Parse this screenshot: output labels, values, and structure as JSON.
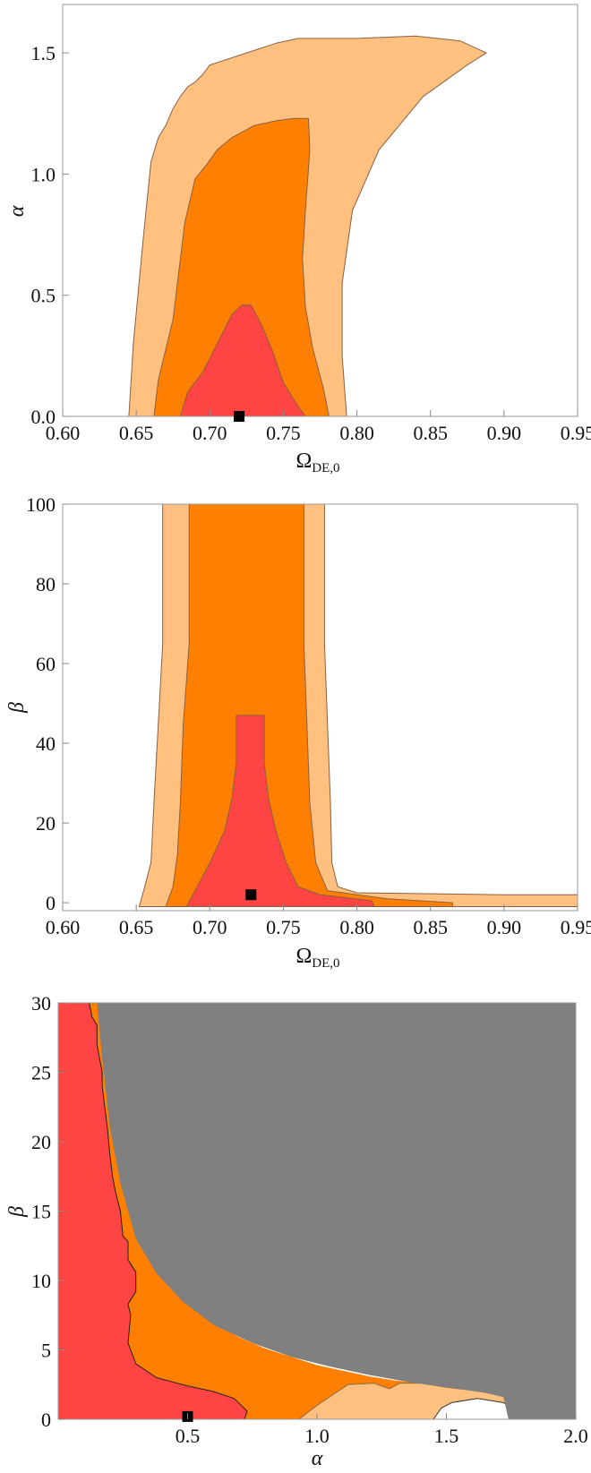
{
  "colors": {
    "inner": "#ff4444",
    "middle": "#ff8000",
    "outer": "#ffc080",
    "excluded": "#808080",
    "best_fit": "#000000",
    "frame": "#9a9a9a"
  },
  "chart_data": [
    {
      "type": "contour",
      "xlabel_main": "Ω",
      "xlabel_sub": "DE,0",
      "ylabel": "α",
      "xlim": [
        0.6,
        0.95
      ],
      "ylim": [
        0.0,
        1.7
      ],
      "x_ticks": [
        "0.60",
        "0.65",
        "0.70",
        "0.75",
        "0.80",
        "0.85",
        "0.90",
        "0.95"
      ],
      "y_ticks": [
        "0.0",
        "0.5",
        "1.0",
        "1.5"
      ],
      "best_fit": {
        "x": 0.72,
        "y": 0.0
      },
      "regions": [
        {
          "name": "outer",
          "points": [
            [
              0.645,
              0.0
            ],
            [
              0.648,
              0.3
            ],
            [
              0.655,
              0.75
            ],
            [
              0.66,
              1.05
            ],
            [
              0.665,
              1.15
            ],
            [
              0.67,
              1.2
            ],
            [
              0.675,
              1.27
            ],
            [
              0.68,
              1.32
            ],
            [
              0.685,
              1.36
            ],
            [
              0.69,
              1.38
            ],
            [
              0.695,
              1.41
            ],
            [
              0.7,
              1.45
            ],
            [
              0.71,
              1.47
            ],
            [
              0.725,
              1.5
            ],
            [
              0.745,
              1.54
            ],
            [
              0.76,
              1.56
            ],
            [
              0.8,
              1.56
            ],
            [
              0.84,
              1.57
            ],
            [
              0.87,
              1.55
            ],
            [
              0.888,
              1.5
            ],
            [
              0.875,
              1.45
            ],
            [
              0.845,
              1.32
            ],
            [
              0.815,
              1.1
            ],
            [
              0.797,
              0.85
            ],
            [
              0.79,
              0.55
            ],
            [
              0.79,
              0.25
            ],
            [
              0.793,
              0.0
            ]
          ]
        },
        {
          "name": "middle",
          "points": [
            [
              0.662,
              0.0
            ],
            [
              0.665,
              0.15
            ],
            [
              0.675,
              0.4
            ],
            [
              0.683,
              0.8
            ],
            [
              0.69,
              0.98
            ],
            [
              0.698,
              1.04
            ],
            [
              0.705,
              1.1
            ],
            [
              0.715,
              1.15
            ],
            [
              0.73,
              1.2
            ],
            [
              0.745,
              1.22
            ],
            [
              0.757,
              1.23
            ],
            [
              0.767,
              1.23
            ],
            [
              0.768,
              1.1
            ],
            [
              0.765,
              0.85
            ],
            [
              0.763,
              0.65
            ],
            [
              0.765,
              0.45
            ],
            [
              0.77,
              0.28
            ],
            [
              0.777,
              0.12
            ],
            [
              0.781,
              0.0
            ]
          ]
        },
        {
          "name": "inner",
          "points": [
            [
              0.68,
              0.0
            ],
            [
              0.685,
              0.1
            ],
            [
              0.695,
              0.18
            ],
            [
              0.705,
              0.3
            ],
            [
              0.715,
              0.42
            ],
            [
              0.722,
              0.46
            ],
            [
              0.728,
              0.46
            ],
            [
              0.735,
              0.38
            ],
            [
              0.742,
              0.28
            ],
            [
              0.75,
              0.14
            ],
            [
              0.758,
              0.06
            ],
            [
              0.765,
              0.0
            ]
          ]
        }
      ]
    },
    {
      "type": "contour",
      "xlabel_main": "Ω",
      "xlabel_sub": "DE,0",
      "ylabel": "β",
      "xlim": [
        0.6,
        0.95
      ],
      "ylim": [
        -2,
        100
      ],
      "x_ticks": [
        "0.60",
        "0.65",
        "0.70",
        "0.75",
        "0.80",
        "0.85",
        "0.90",
        "0.95"
      ],
      "y_ticks": [
        "0",
        "20",
        "40",
        "60",
        "80",
        "100"
      ],
      "best_fit": {
        "x": 0.728,
        "y": 2.0
      },
      "regions": [
        {
          "name": "outer",
          "points": [
            [
              0.652,
              -1
            ],
            [
              0.655,
              3
            ],
            [
              0.66,
              10
            ],
            [
              0.662,
              25
            ],
            [
              0.665,
              45
            ],
            [
              0.668,
              65
            ],
            [
              0.668,
              100
            ],
            [
              0.778,
              100
            ],
            [
              0.778,
              65
            ],
            [
              0.78,
              45
            ],
            [
              0.782,
              25
            ],
            [
              0.783,
              10
            ],
            [
              0.787,
              4
            ],
            [
              0.8,
              2.5
            ],
            [
              0.9,
              2
            ],
            [
              0.95,
              2
            ],
            [
              0.95,
              -1
            ]
          ]
        },
        {
          "name": "middle",
          "points": [
            [
              0.67,
              -1
            ],
            [
              0.675,
              4
            ],
            [
              0.678,
              12
            ],
            [
              0.68,
              25
            ],
            [
              0.682,
              45
            ],
            [
              0.686,
              65
            ],
            [
              0.686,
              100
            ],
            [
              0.764,
              100
            ],
            [
              0.764,
              65
            ],
            [
              0.766,
              45
            ],
            [
              0.768,
              25
            ],
            [
              0.772,
              10
            ],
            [
              0.78,
              3
            ],
            [
              0.82,
              1
            ],
            [
              0.865,
              0
            ],
            [
              0.865,
              -1
            ]
          ]
        },
        {
          "name": "inner",
          "points": [
            [
              0.684,
              -1
            ],
            [
              0.69,
              3
            ],
            [
              0.7,
              10
            ],
            [
              0.71,
              18
            ],
            [
              0.715,
              26
            ],
            [
              0.718,
              35
            ],
            [
              0.718,
              47
            ],
            [
              0.737,
              47
            ],
            [
              0.737,
              35
            ],
            [
              0.74,
              26
            ],
            [
              0.745,
              18
            ],
            [
              0.752,
              10
            ],
            [
              0.76,
              4
            ],
            [
              0.775,
              2
            ],
            [
              0.81,
              0.5
            ],
            [
              0.812,
              -1
            ]
          ]
        }
      ]
    },
    {
      "type": "contour",
      "xlabel_main": "α",
      "xlabel_sub": "",
      "ylabel": "β",
      "xlim": [
        0.0,
        2.0
      ],
      "ylim": [
        0,
        30
      ],
      "x_ticks": [
        "0.5",
        "1.0",
        "1.5",
        "2.0"
      ],
      "y_ticks": [
        "0",
        "5",
        "10",
        "15",
        "20",
        "25",
        "30"
      ],
      "best_fit": {
        "x": 0.5,
        "y": 0.2
      },
      "regions": [
        {
          "name": "orange-base",
          "points": [
            [
              0.0,
              0.0
            ],
            [
              0.0,
              30
            ],
            [
              0.18,
              30
            ],
            [
              0.2,
              25
            ],
            [
              0.24,
              20
            ],
            [
              0.28,
              16
            ],
            [
              0.33,
              13.2
            ],
            [
              0.4,
              10.5
            ],
            [
              0.5,
              8.3
            ],
            [
              0.6,
              6.9
            ],
            [
              0.7,
              5.9
            ],
            [
              0.8,
              5.1
            ],
            [
              0.9,
              4.5
            ],
            [
              1.0,
              3.9
            ],
            [
              1.1,
              3.5
            ],
            [
              1.2,
              3.1
            ],
            [
              1.3,
              2.8
            ],
            [
              1.4,
              2.6
            ],
            [
              1.5,
              2.3
            ],
            [
              1.6,
              2.1
            ],
            [
              1.7,
              2.0
            ],
            [
              1.8,
              1.9
            ],
            [
              1.9,
              1.8
            ],
            [
              2.0,
              1.7
            ],
            [
              2.0,
              0.0
            ]
          ]
        },
        {
          "name": "light",
          "points": [
            [
              0.93,
              0.0
            ],
            [
              1.0,
              1.0
            ],
            [
              1.08,
              2.0
            ],
            [
              1.12,
              2.5
            ],
            [
              1.22,
              2.6
            ],
            [
              1.28,
              2.2
            ],
            [
              1.32,
              2.6
            ],
            [
              1.4,
              2.6
            ],
            [
              1.5,
              2.3
            ],
            [
              1.6,
              2.1
            ],
            [
              1.7,
              2.0
            ],
            [
              1.8,
              1.9
            ],
            [
              1.9,
              1.8
            ],
            [
              2.0,
              1.7
            ],
            [
              2.0,
              0.0
            ]
          ]
        },
        {
          "name": "white-gap",
          "points": [
            [
              1.45,
              0.0
            ],
            [
              1.48,
              0.8
            ],
            [
              1.52,
              1.2
            ],
            [
              1.62,
              1.5
            ],
            [
              1.72,
              1.2
            ],
            [
              1.78,
              0.6
            ],
            [
              1.8,
              0.0
            ]
          ]
        },
        {
          "name": "inner",
          "points": [
            [
              0.0,
              0.0
            ],
            [
              0.0,
              30
            ],
            [
              0.12,
              30
            ],
            [
              0.13,
              29
            ],
            [
              0.15,
              28.4
            ],
            [
              0.15,
              27
            ],
            [
              0.16,
              26
            ],
            [
              0.17,
              25
            ],
            [
              0.17,
              24
            ],
            [
              0.18,
              22.5
            ],
            [
              0.19,
              21
            ],
            [
              0.2,
              19
            ],
            [
              0.21,
              17.5
            ],
            [
              0.22,
              16.5
            ],
            [
              0.24,
              15
            ],
            [
              0.25,
              13.2
            ],
            [
              0.27,
              12.8
            ],
            [
              0.27,
              11.5
            ],
            [
              0.3,
              10.6
            ],
            [
              0.3,
              9.2
            ],
            [
              0.27,
              8.3
            ],
            [
              0.28,
              7.5
            ],
            [
              0.27,
              5.5
            ],
            [
              0.3,
              4.0
            ],
            [
              0.38,
              3.0
            ],
            [
              0.5,
              2.4
            ],
            [
              0.6,
              2.0
            ],
            [
              0.68,
              1.5
            ],
            [
              0.73,
              0.6
            ],
            [
              0.72,
              0.0
            ]
          ]
        }
      ],
      "excluded_region": {
        "name": "grey",
        "points": [
          [
            0.15,
            30
          ],
          [
            0.17,
            26
          ],
          [
            0.2,
            21
          ],
          [
            0.24,
            17
          ],
          [
            0.3,
            13
          ],
          [
            0.38,
            10.5
          ],
          [
            0.48,
            8.5
          ],
          [
            0.6,
            6.8
          ],
          [
            0.75,
            5.5
          ],
          [
            0.9,
            4.5
          ],
          [
            1.05,
            3.8
          ],
          [
            1.2,
            3.2
          ],
          [
            1.35,
            2.7
          ],
          [
            1.5,
            2.3
          ],
          [
            1.65,
            1.9
          ],
          [
            1.72,
            1.6
          ],
          [
            1.74,
            0.0
          ],
          [
            2.0,
            0.0
          ],
          [
            2.0,
            30
          ]
        ]
      }
    }
  ]
}
